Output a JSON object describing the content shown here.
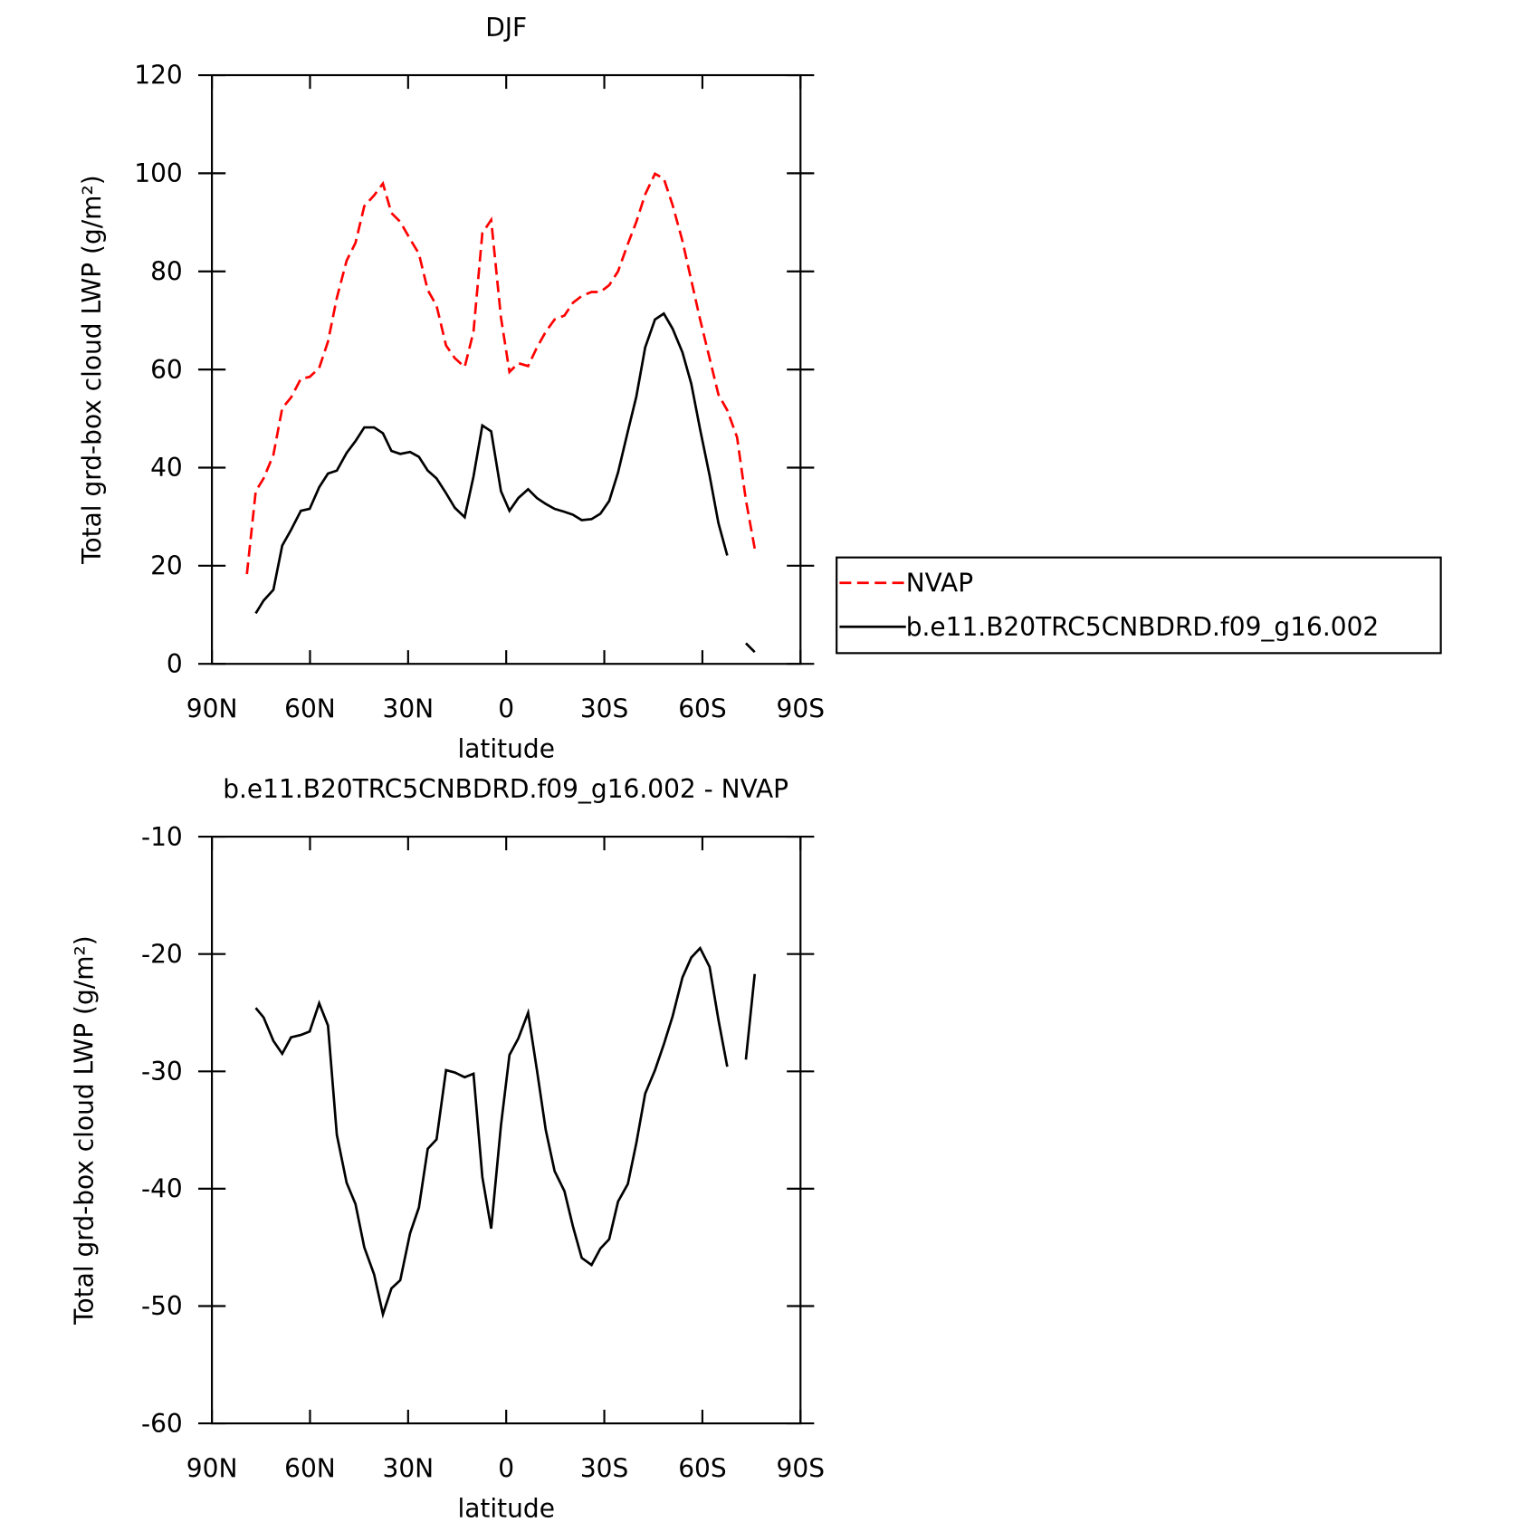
{
  "chart_data": [
    {
      "type": "line",
      "title": "DJF",
      "xlabel": "latitude",
      "ylabel": "Total grd-box cloud LWP (g/m²)",
      "x": [
        79.3,
        76.6,
        74.2,
        71.2,
        68.5,
        65.8,
        62.8,
        60.1,
        57.2,
        54.5,
        51.8,
        48.8,
        46.1,
        43.4,
        40.4,
        37.7,
        35.1,
        32.4,
        29.4,
        26.7,
        24.0,
        21.3,
        18.4,
        15.7,
        12.7,
        10.0,
        7.3,
        4.6,
        1.6,
        -1.0,
        -3.7,
        -6.7,
        -9.4,
        -12.1,
        -14.8,
        -17.8,
        -20.4,
        -23.1,
        -26.1,
        -28.8,
        -31.5,
        -34.2,
        -37.2,
        -39.8,
        -42.5,
        -45.5,
        -48.2,
        -50.9,
        -53.9,
        -56.6,
        -59.3,
        -62.2,
        -64.9,
        -67.6,
        -70.6,
        -73.3,
        -76.0
      ],
      "series": [
        {
          "name": "NVAP",
          "color": "#ff0000",
          "linestyle": "dashed",
          "values": [
            18.3,
            35.2,
            37.8,
            42.6,
            52.1,
            54.3,
            58.1,
            58.5,
            60.3,
            65.7,
            74.6,
            82.2,
            85.8,
            93.3,
            95.5,
            97.9,
            91.9,
            90.1,
            86.6,
            83.6,
            76.2,
            73.0,
            64.9,
            62.3,
            60.5,
            67.7,
            87.8,
            90.5,
            70.6,
            59.5,
            61.3,
            60.7,
            64.5,
            67.7,
            70.2,
            71.0,
            73.6,
            75.0,
            75.8,
            75.8,
            77.2,
            80.0,
            85.6,
            90.1,
            95.7,
            99.9,
            98.9,
            93.5,
            86.2,
            78.2,
            70.2,
            62.3,
            54.9,
            51.7,
            46.2,
            33.4,
            23.5
          ]
        },
        {
          "name": "b.e11.B20TRC5CNBDRD.f09_g16.002",
          "color": "#000000",
          "linestyle": "solid",
          "values": [
            null,
            10.3,
            12.9,
            15.1,
            24.1,
            27.3,
            31.2,
            31.6,
            36.0,
            38.8,
            39.4,
            43.0,
            45.4,
            48.2,
            48.2,
            47.0,
            43.4,
            42.8,
            43.2,
            42.2,
            39.4,
            37.8,
            34.8,
            31.8,
            29.9,
            38.2,
            48.6,
            47.4,
            35.2,
            31.2,
            33.8,
            35.6,
            33.8,
            32.6,
            31.6,
            31.0,
            30.4,
            29.3,
            29.5,
            30.6,
            33.2,
            39.0,
            47.4,
            54.5,
            64.5,
            70.2,
            71.4,
            68.3,
            63.5,
            57.1,
            47.8,
            38.4,
            28.7,
            22.1,
            null,
            4.2,
            2.4
          ]
        }
      ],
      "xlim": [
        90,
        -90
      ],
      "xticks": [
        {
          "value": 90,
          "label": "90N"
        },
        {
          "value": 60,
          "label": "60N"
        },
        {
          "value": 30,
          "label": "30N"
        },
        0,
        {
          "value": -30,
          "label": "30S"
        },
        {
          "value": -60,
          "label": "60S"
        },
        {
          "value": -90,
          "label": "90S"
        }
      ],
      "ylim": [
        0,
        120
      ],
      "yticks": [
        0,
        20,
        40,
        60,
        80,
        100,
        120
      ],
      "legend": "right"
    },
    {
      "type": "line",
      "title": "b.e11.B20TRC5CNBDRD.f09_g16.002 - NVAP",
      "xlabel": "latitude",
      "ylabel": "Total grd-box cloud LWP (g/m²)",
      "x": [
        79.3,
        76.6,
        74.2,
        71.2,
        68.5,
        65.8,
        62.8,
        60.1,
        57.2,
        54.5,
        51.8,
        48.8,
        46.1,
        43.4,
        40.4,
        37.7,
        35.1,
        32.4,
        29.4,
        26.7,
        24.0,
        21.3,
        18.4,
        15.7,
        12.7,
        10.0,
        7.3,
        4.6,
        1.6,
        -1.0,
        -3.7,
        -6.7,
        -9.4,
        -12.1,
        -14.8,
        -17.8,
        -20.4,
        -23.1,
        -26.1,
        -28.8,
        -31.5,
        -34.2,
        -37.2,
        -39.8,
        -42.5,
        -45.5,
        -48.2,
        -50.9,
        -53.9,
        -56.6,
        -59.3,
        -62.2,
        -64.9,
        -67.6,
        -70.6,
        -73.3,
        -76.0
      ],
      "series": [
        {
          "color": "#000000",
          "linestyle": "solid",
          "values": [
            null,
            -24.6,
            -25.4,
            -27.4,
            -28.5,
            -27.1,
            -26.9,
            -26.6,
            -24.2,
            -26.1,
            -35.4,
            -39.5,
            -41.3,
            -45.0,
            -47.3,
            -50.7,
            -48.5,
            -47.8,
            -43.8,
            -41.6,
            -36.6,
            -35.8,
            -29.9,
            -30.1,
            -30.5,
            -30.2,
            -39.0,
            -43.4,
            -34.6,
            -28.6,
            -27.2,
            -25.0,
            -29.9,
            -35.0,
            -38.5,
            -40.2,
            -43.2,
            -45.9,
            -46.5,
            -45.1,
            -44.3,
            -41.1,
            -39.6,
            -36.1,
            -31.9,
            -29.9,
            -27.7,
            -25.3,
            -22.0,
            -20.3,
            -19.5,
            -21.1,
            -25.6,
            -29.6,
            null,
            -29.0,
            -21.7
          ]
        }
      ],
      "xlim": [
        90,
        -90
      ],
      "xticks": [
        {
          "value": 90,
          "label": "90N"
        },
        {
          "value": 60,
          "label": "60N"
        },
        {
          "value": 30,
          "label": "30N"
        },
        0,
        {
          "value": -30,
          "label": "30S"
        },
        {
          "value": -60,
          "label": "60S"
        },
        {
          "value": -90,
          "label": "90S"
        }
      ],
      "ylim": [
        -60,
        -10
      ],
      "yticks": [
        -60,
        -50,
        -40,
        -30,
        -20,
        -10
      ]
    }
  ]
}
